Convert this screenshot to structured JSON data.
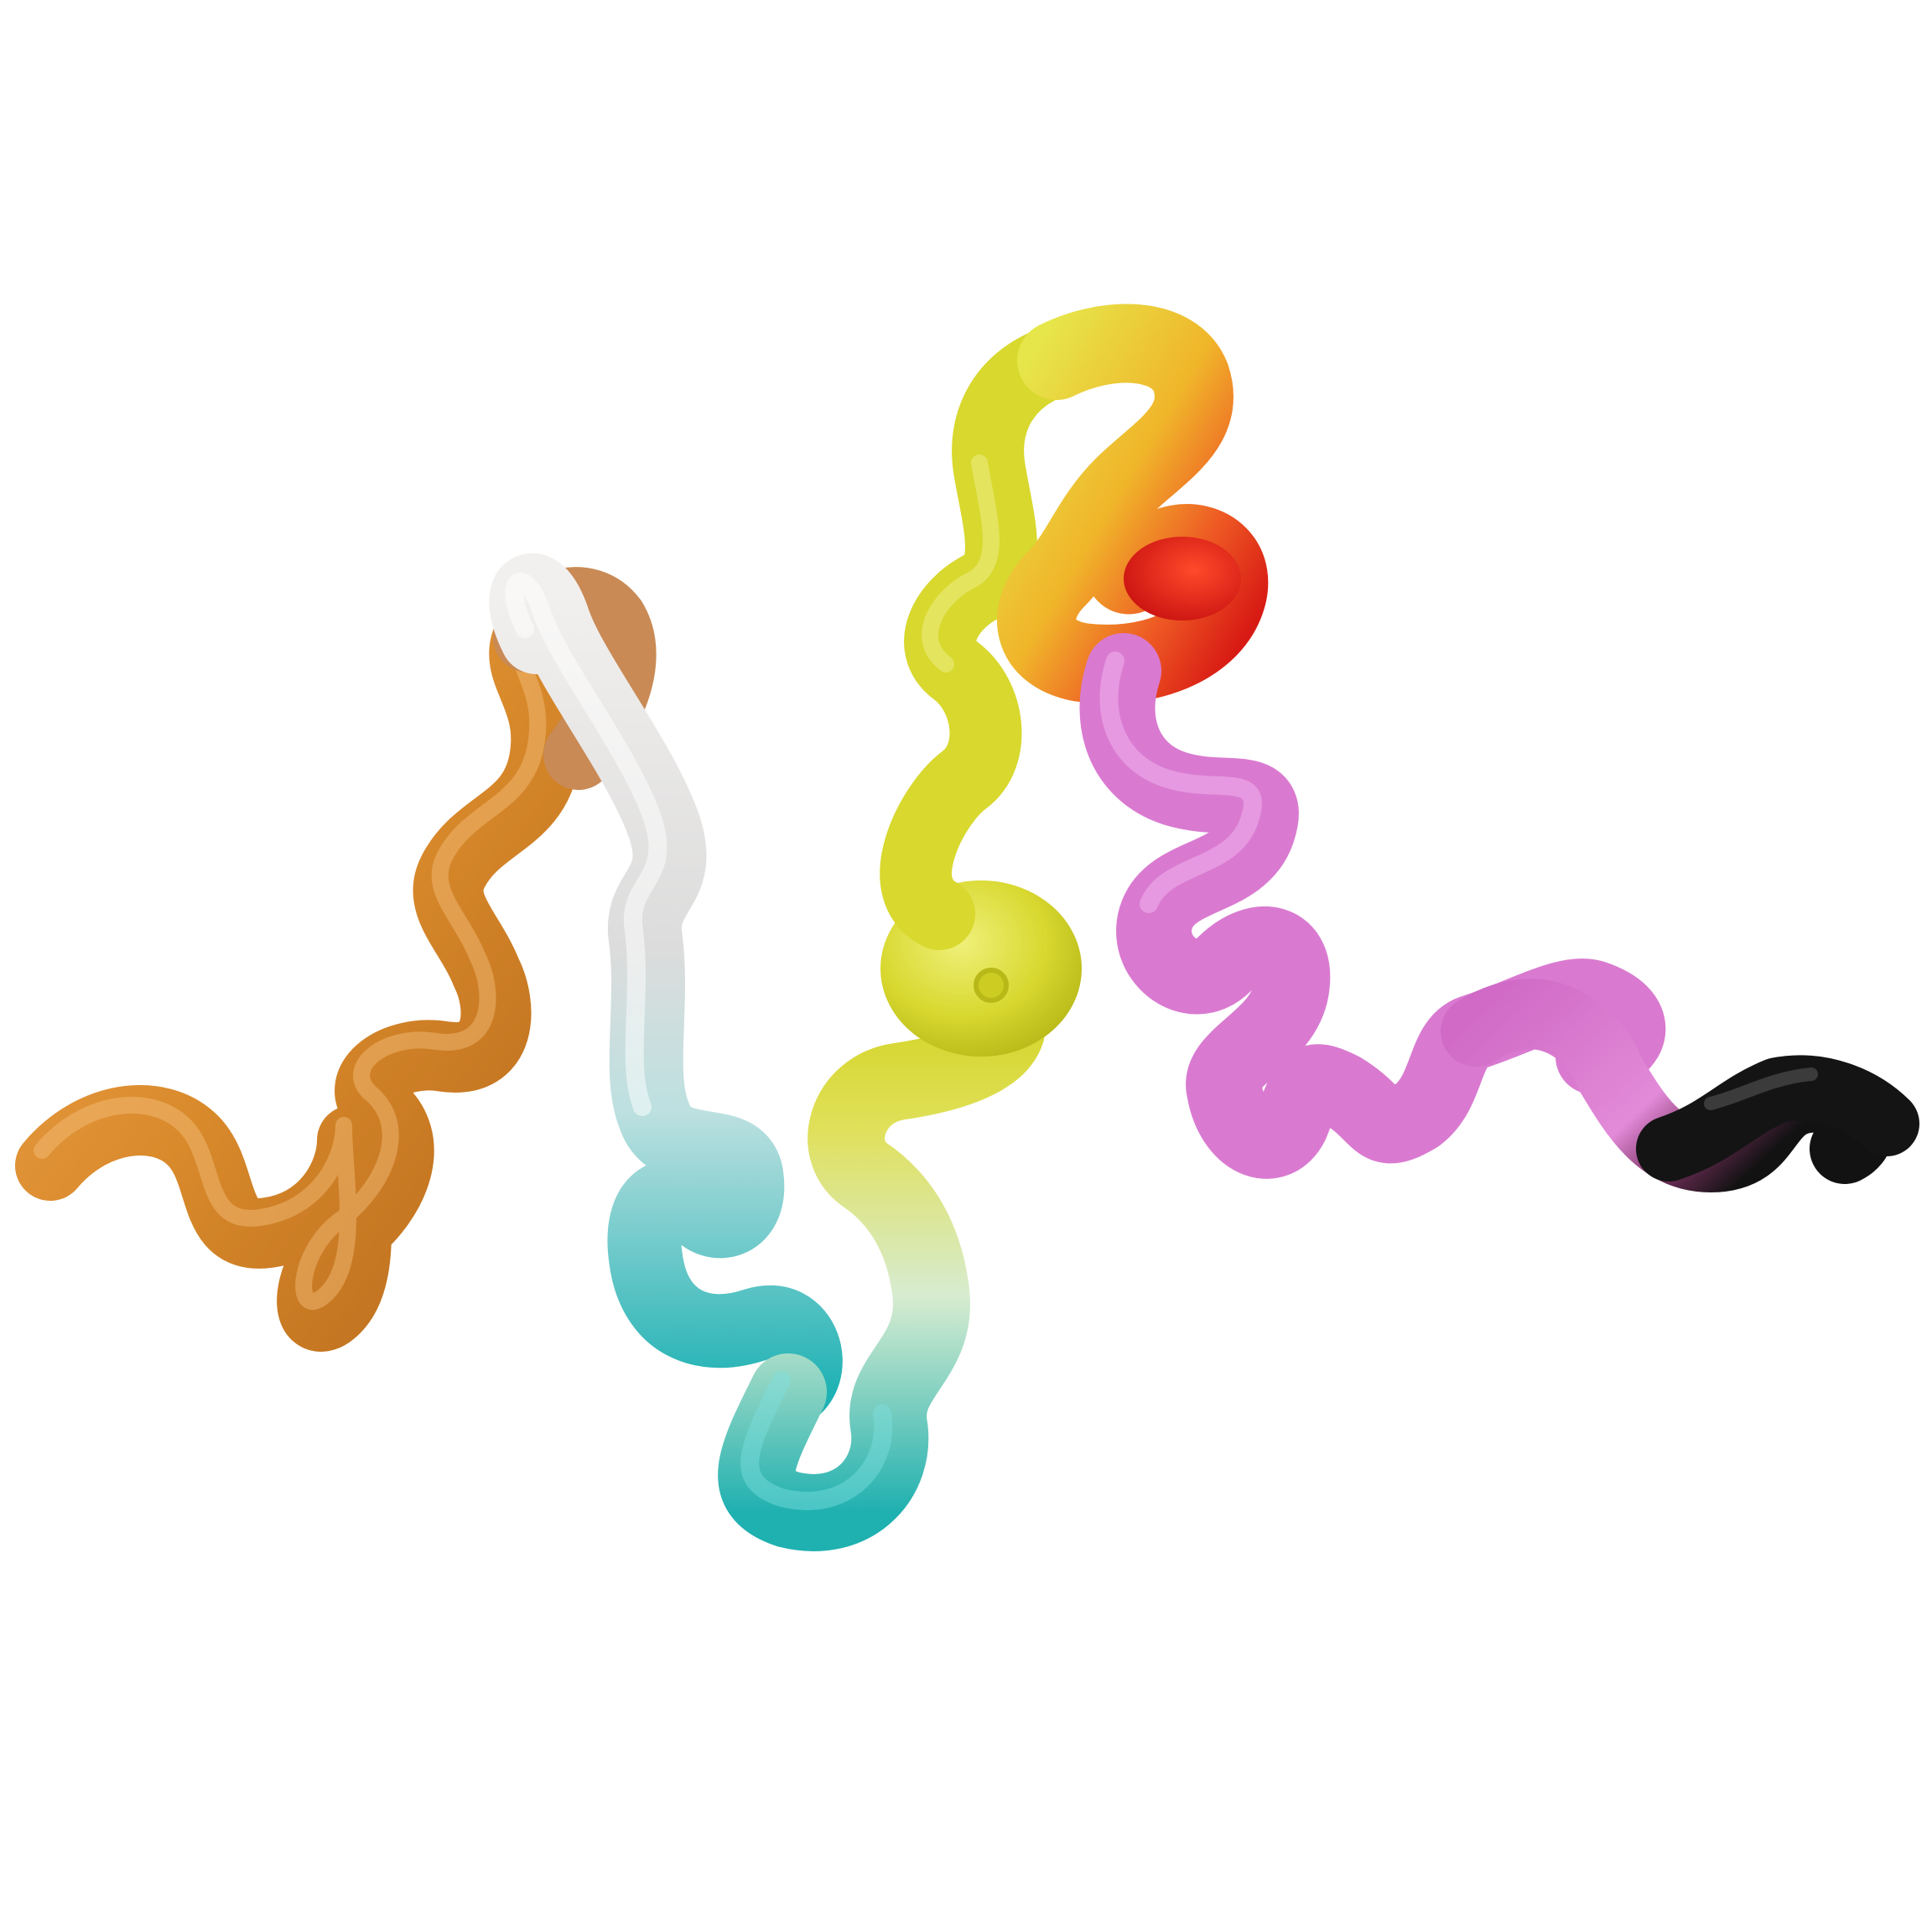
{
  "image": {
    "background": "#ffffff",
    "subject": "twisting-tube-sculpture",
    "segments": [
      {
        "id": "orange",
        "color": "#d98a2b"
      },
      {
        "id": "white",
        "color": "#e6e6e6"
      },
      {
        "id": "teal",
        "color": "#28b3b3"
      },
      {
        "id": "yellow",
        "color": "#d8d82e"
      },
      {
        "id": "red",
        "color": "#e03a1c"
      },
      {
        "id": "pink",
        "color": "#d97ad0"
      },
      {
        "id": "black",
        "color": "#141414"
      }
    ]
  }
}
